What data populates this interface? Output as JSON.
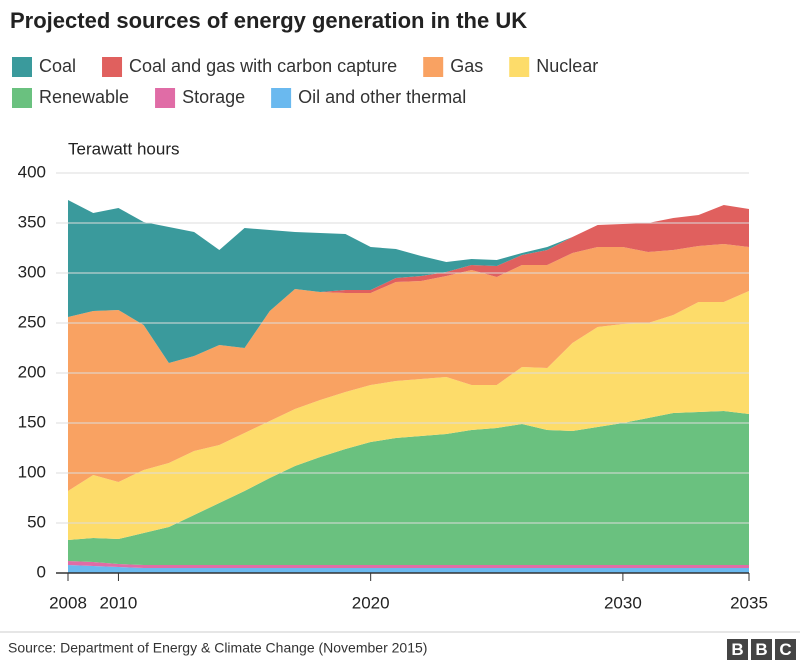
{
  "chart_data": {
    "type": "stacked-area",
    "title": "Projected sources of energy generation in the UK",
    "y_label": "Terawatt hours",
    "source": "Source: Department of Energy & Climate Change (November 2015)",
    "logo": [
      "B",
      "B",
      "C"
    ],
    "x": [
      2008,
      2009,
      2010,
      2011,
      2012,
      2013,
      2014,
      2015,
      2016,
      2017,
      2018,
      2019,
      2020,
      2021,
      2022,
      2023,
      2024,
      2025,
      2026,
      2027,
      2028,
      2029,
      2030,
      2031,
      2032,
      2033,
      2034,
      2035
    ],
    "xlim": [
      2008,
      2035
    ],
    "xticks": [
      2008,
      2010,
      2020,
      2030,
      2035
    ],
    "ylim": [
      0,
      400
    ],
    "yticks": [
      0,
      50,
      100,
      150,
      200,
      250,
      300,
      350,
      400
    ],
    "grid": true,
    "series": [
      {
        "name": "Coal",
        "color": "#3a9a9c",
        "values": [
          117,
          98,
          102,
          103,
          136,
          124,
          95,
          120,
          81,
          57,
          59,
          56,
          43,
          29,
          20,
          10,
          6,
          6,
          2,
          3,
          0,
          0,
          0,
          0,
          0,
          0,
          0,
          0
        ]
      },
      {
        "name": "Coal and gas with carbon capture",
        "color": "#e0605e",
        "values": [
          0,
          0,
          0,
          0,
          0,
          0,
          0,
          0,
          0,
          0,
          0,
          3,
          3,
          4,
          5,
          4,
          5,
          11,
          10,
          15,
          16,
          22,
          23,
          29,
          32,
          31,
          39,
          38
        ]
      },
      {
        "name": "Gas",
        "color": "#f9a262",
        "values": [
          174,
          164,
          172,
          145,
          100,
          95,
          100,
          85,
          110,
          120,
          108,
          99,
          92,
          99,
          98,
          101,
          115,
          108,
          102,
          103,
          90,
          80,
          77,
          71,
          65,
          56,
          58,
          44
        ]
      },
      {
        "name": "Nuclear",
        "color": "#fddc6a",
        "values": [
          49,
          63,
          57,
          63,
          64,
          64,
          58,
          58,
          57,
          57,
          57,
          57,
          57,
          57,
          57,
          57,
          45,
          43,
          57,
          62,
          88,
          100,
          99,
          95,
          98,
          110,
          109,
          123
        ]
      },
      {
        "name": "Renewable",
        "color": "#6ac17f",
        "values": [
          21,
          24,
          25,
          32,
          38,
          50,
          62,
          74,
          87,
          99,
          108,
          116,
          123,
          127,
          129,
          131,
          135,
          137,
          141,
          135,
          134,
          138,
          142,
          147,
          152,
          153,
          154,
          151
        ]
      },
      {
        "name": "Storage",
        "color": "#e06ca6",
        "values": [
          4,
          4,
          3,
          3,
          3,
          3,
          3,
          3,
          3,
          3,
          3,
          3,
          3,
          3,
          3,
          3,
          3,
          3,
          3,
          3,
          3,
          3,
          3,
          3,
          3,
          3,
          3,
          3
        ]
      },
      {
        "name": "Oil and other thermal",
        "color": "#6ab9ef",
        "values": [
          8,
          7,
          6,
          5,
          5,
          5,
          5,
          5,
          5,
          5,
          5,
          5,
          5,
          5,
          5,
          5,
          5,
          5,
          5,
          5,
          5,
          5,
          5,
          5,
          5,
          5,
          5,
          5
        ]
      }
    ]
  }
}
